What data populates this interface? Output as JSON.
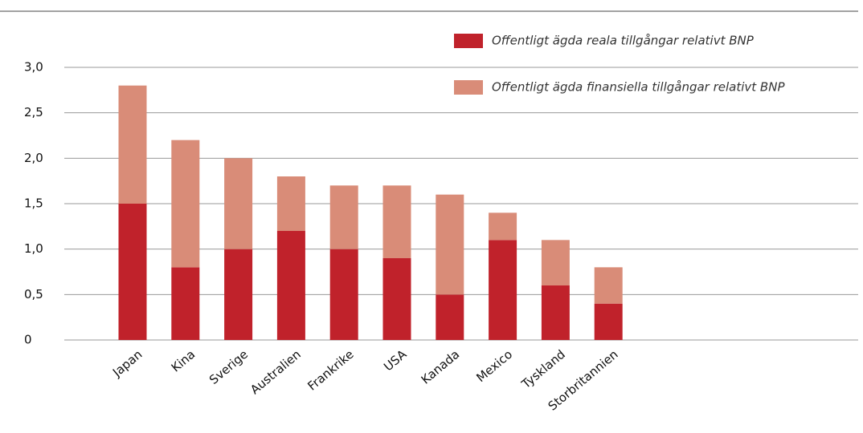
{
  "chart_data": {
    "type": "stacked_bar",
    "categories": [
      "Japan",
      "Kina",
      "Sverige",
      "Australien",
      "Frankrike",
      "USA",
      "Kanada",
      "Mexico",
      "Tyskland",
      "Storbritannien"
    ],
    "series": [
      {
        "name": "Offentligt ägda reala tillgångar relativt BNP",
        "color": "#c0222b",
        "values": [
          1.5,
          0.8,
          1.0,
          1.2,
          1.0,
          0.9,
          0.5,
          1.1,
          0.6,
          0.4
        ]
      },
      {
        "name": "Offentligt ägda finansiella tillgångar relativt BNP",
        "color": "#d98c78",
        "values": [
          1.3,
          1.4,
          1.0,
          0.6,
          0.7,
          0.8,
          1.1,
          0.3,
          0.5,
          0.4
        ]
      }
    ],
    "ylim": [
      0,
      3
    ],
    "yticks": [
      0,
      {
        "value": 0.5,
        "label": "0,5"
      },
      {
        "value": 1,
        "label": "1,0"
      },
      {
        "value": 1.5,
        "label": "1,5"
      },
      {
        "value": 2,
        "label": "2,0"
      },
      {
        "value": 2.5,
        "label": "2,5"
      },
      {
        "value": 3,
        "label": "3,0"
      }
    ],
    "grid": true
  }
}
